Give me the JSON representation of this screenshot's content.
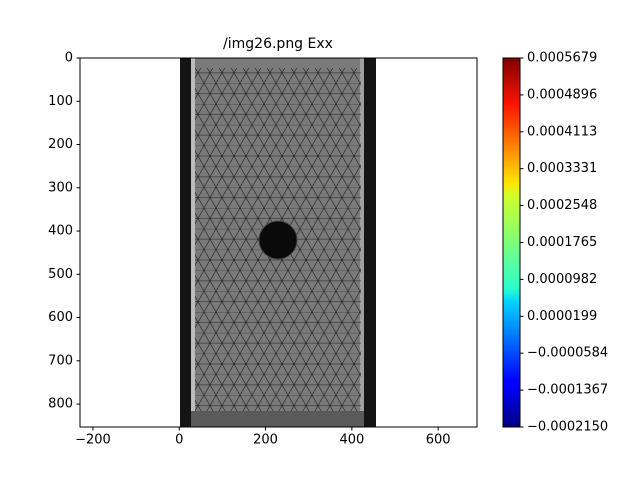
{
  "chart_data": {
    "type": "image",
    "title": "/img26.png Exx",
    "xlim": [
      -230,
      690
    ],
    "ylim": [
      853,
      0
    ],
    "xticks": [
      {
        "value": -200,
        "label": "−200"
      },
      0,
      200,
      400,
      600
    ],
    "yticks": [
      0,
      100,
      200,
      300,
      400,
      500,
      600,
      700,
      800
    ],
    "colorbar": {
      "colormap": "jet",
      "clim": [
        -0.000215,
        0.0005679
      ],
      "ticks": [
        {
          "value": -0.000215,
          "label": "−0.0002150"
        },
        {
          "value": -0.0001367,
          "label": "−0.0001367"
        },
        {
          "value": -5.84e-05,
          "label": "−0.0000584"
        },
        {
          "value": 1.99e-05,
          "label": "0.0000199"
        },
        {
          "value": 9.82e-05,
          "label": "0.0000982"
        },
        {
          "value": 0.0001765,
          "label": "0.0001765"
        },
        {
          "value": 0.0002548,
          "label": "0.0002548"
        },
        {
          "value": 0.0003331,
          "label": "0.0003331"
        },
        {
          "value": 0.0004113,
          "label": "0.0004113"
        },
        {
          "value": 0.0004896,
          "label": "0.0004896"
        },
        {
          "value": 0.0005679,
          "label": "0.0005679"
        }
      ]
    }
  }
}
